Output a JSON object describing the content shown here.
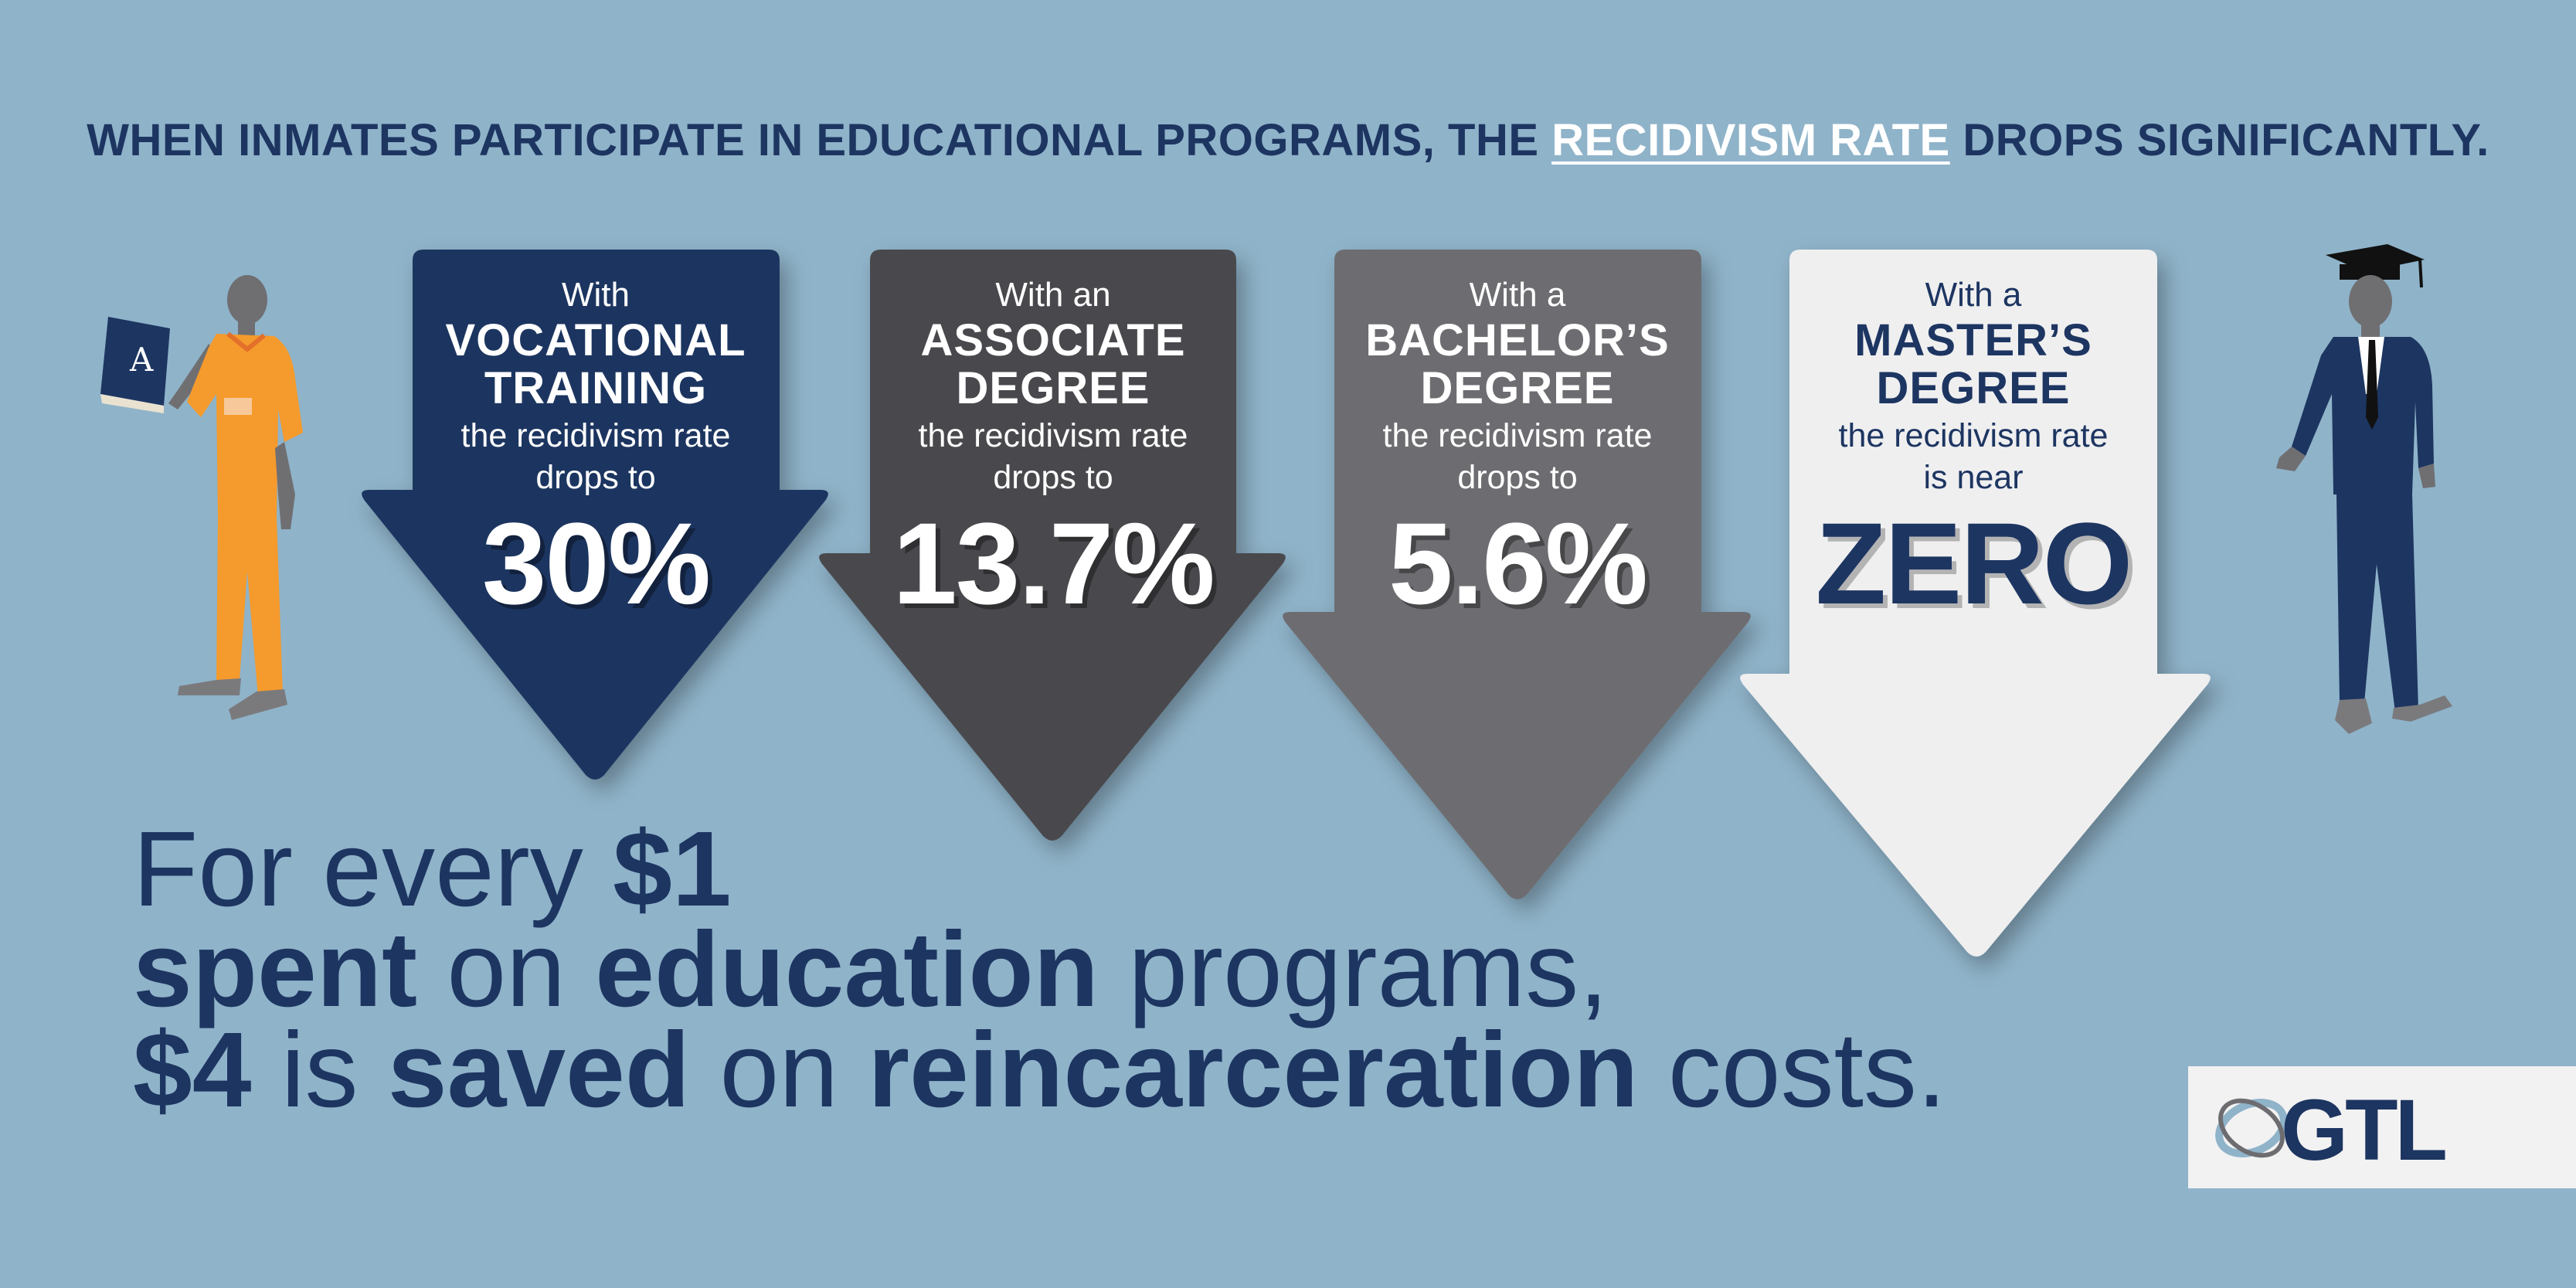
{
  "headline": {
    "before": "WHEN INMATES PARTICIPATE IN EDUCATIONAL PROGRAMS, THE ",
    "highlight": "RECIDIVISM RATE",
    "after": " DROPS SIGNIFICANTLY."
  },
  "arrows": [
    {
      "intro": "With",
      "kind_line1": "VOCATIONAL",
      "kind_line2": "TRAINING",
      "desc_line1": "the recidivism rate",
      "desc_line2": "drops to",
      "value": "30%",
      "color": "#1d3561"
    },
    {
      "intro": "With an",
      "kind_line1": "ASSOCIATE",
      "kind_line2": "DEGREE",
      "desc_line1": "the recidivism rate",
      "desc_line2": "drops to",
      "value": "13.7%",
      "color": "#4a4a4d"
    },
    {
      "intro": "With a",
      "kind_line1": "BACHELOR’S",
      "kind_line2": "DEGREE",
      "desc_line1": "the recidivism rate",
      "desc_line2": "drops to",
      "value": "5.6%",
      "color": "#6d6d71"
    },
    {
      "intro": "With a",
      "kind_line1": "MASTER’S",
      "kind_line2": "DEGREE",
      "desc_line1": "the recidivism rate",
      "desc_line2": "is near",
      "value": "ZERO",
      "color": "#efeff0"
    }
  ],
  "savings": {
    "l1_a": "For every ",
    "l1_b": "$1",
    "l2_a": "spent",
    "l2_b": " on ",
    "l2_c": "education",
    "l2_d": " programs,",
    "l3_a": "$4",
    "l3_b": " is ",
    "l3_c": "saved",
    "l3_d": " on ",
    "l3_e": "reincarceration",
    "l3_f": " costs."
  },
  "logo": {
    "text": "GTL"
  },
  "book_letter": "A",
  "colors": {
    "background": "#8fb3c9",
    "navy": "#1d3561",
    "orange": "#f59a2c"
  }
}
